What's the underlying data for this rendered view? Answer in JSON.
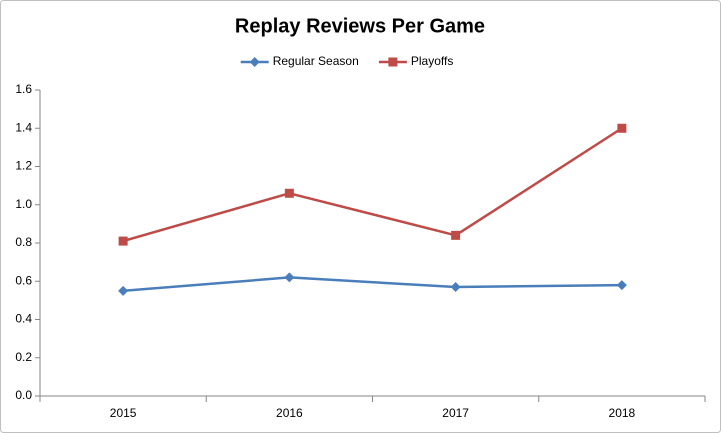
{
  "chart_data": {
    "type": "line",
    "title": "Replay Reviews Per Game",
    "categories": [
      "2015",
      "2016",
      "2017",
      "2018"
    ],
    "series": [
      {
        "name": "Regular Season",
        "color": "#4a7ebb",
        "marker": "diamond",
        "values": [
          0.55,
          0.62,
          0.57,
          0.58
        ]
      },
      {
        "name": "Playoffs",
        "color": "#be4b48",
        "marker": "square",
        "values": [
          0.81,
          1.06,
          0.84,
          1.4
        ]
      }
    ],
    "ylim": [
      0,
      1.6
    ],
    "yticks": [
      {
        "value": 0,
        "label": "0.0"
      },
      0.2,
      0.4,
      0.6,
      0.8,
      {
        "value": 1,
        "label": "1.0"
      },
      1.2,
      1.4,
      1.6
    ],
    "grid": false,
    "legend": "top"
  }
}
